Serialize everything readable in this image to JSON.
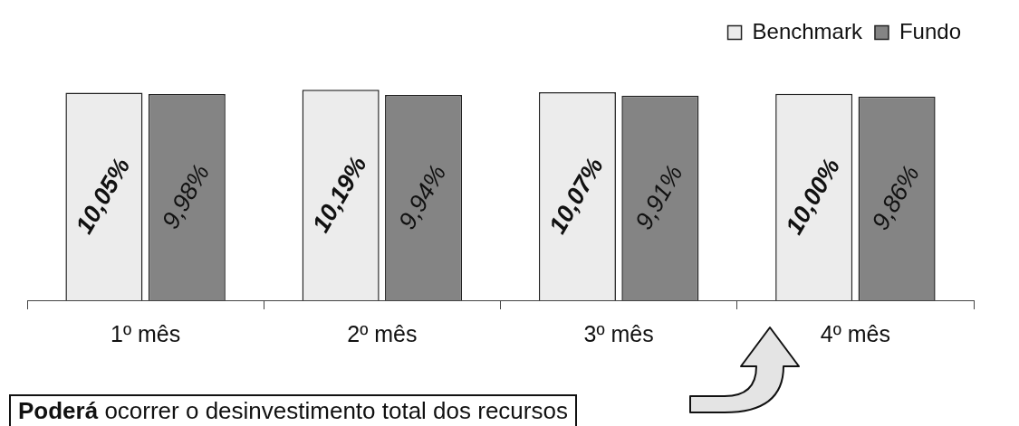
{
  "chart_data": {
    "type": "bar",
    "categories": [
      "1º mês",
      "2º mês",
      "3º mês",
      "4º mês"
    ],
    "series": [
      {
        "name": "Benchmark",
        "color": "#ececec",
        "values": [
          10.05,
          10.19,
          10.07,
          10.0
        ],
        "value_labels": [
          "10,05%",
          "10,19%",
          "10,07%",
          "10,00%"
        ]
      },
      {
        "name": "Fundo",
        "color": "#848484",
        "values": [
          9.98,
          9.94,
          9.91,
          9.86
        ],
        "value_labels": [
          "9,98%",
          "9,94%",
          "9,91%",
          "9,86%"
        ]
      }
    ],
    "legend": "top right",
    "grid": false,
    "annotations": [
      "Poderá ocorrer o desinvestimento total dos recursos"
    ]
  }
}
